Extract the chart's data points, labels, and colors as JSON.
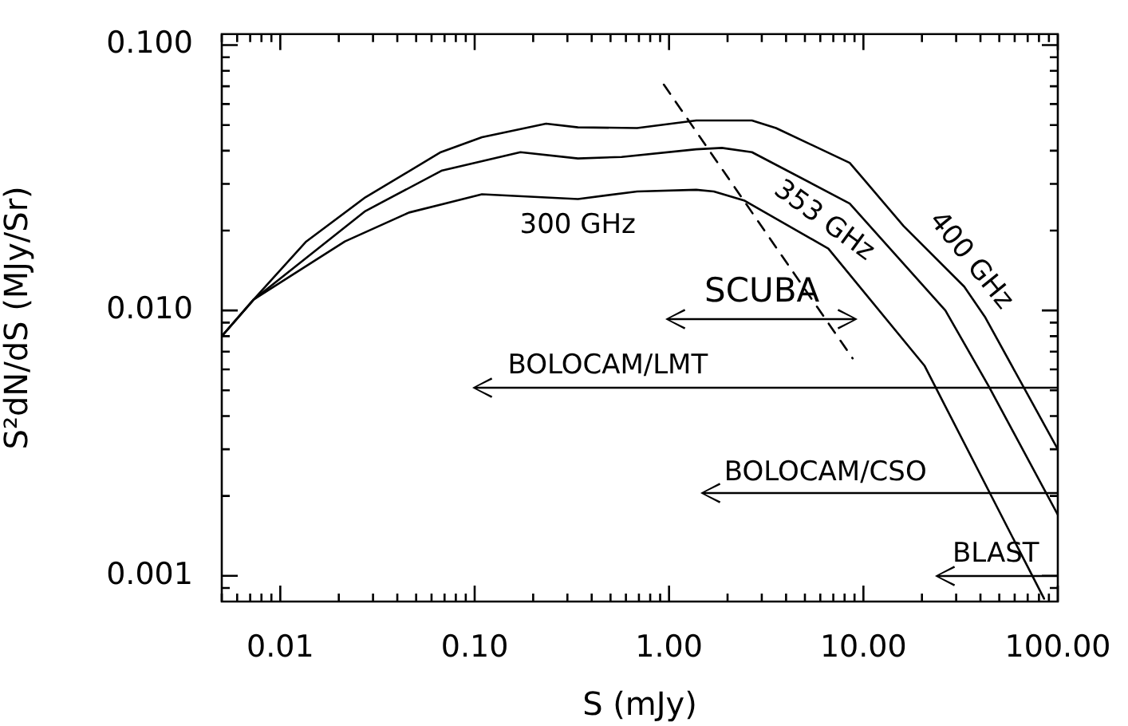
{
  "chart_data": {
    "type": "line",
    "xlabel": "S (mJy)",
    "ylabel": "S²dN/dS (MJy/Sr)",
    "log": "xy",
    "legend": false,
    "marker": "none",
    "line_style": "solid",
    "xlim": [
      0.005,
      100
    ],
    "ylim": [
      0.0008,
      0.11
    ],
    "xticks": [
      {
        "value": 0.005,
        "label": null
      },
      {
        "value": 0.006,
        "label": null
      },
      {
        "value": 0.007,
        "label": null
      },
      {
        "value": 0.008,
        "label": null
      },
      {
        "value": 0.009,
        "label": null
      },
      {
        "value": 0.01,
        "label": "0.01"
      },
      {
        "value": 0.02,
        "label": null
      },
      {
        "value": 0.03,
        "label": null
      },
      {
        "value": 0.04,
        "label": null
      },
      {
        "value": 0.05,
        "label": null
      },
      {
        "value": 0.06,
        "label": null
      },
      {
        "value": 0.07,
        "label": null
      },
      {
        "value": 0.08,
        "label": null
      },
      {
        "value": 0.09,
        "label": null
      },
      {
        "value": 0.1,
        "label": "0.10"
      },
      {
        "value": 0.2,
        "label": null
      },
      {
        "value": 0.3,
        "label": null
      },
      {
        "value": 0.4,
        "label": null
      },
      {
        "value": 0.5,
        "label": null
      },
      {
        "value": 0.6,
        "label": null
      },
      {
        "value": 0.7,
        "label": null
      },
      {
        "value": 0.8,
        "label": null
      },
      {
        "value": 0.9,
        "label": null
      },
      {
        "value": 1,
        "label": "1.00"
      },
      {
        "value": 2,
        "label": null
      },
      {
        "value": 3,
        "label": null
      },
      {
        "value": 4,
        "label": null
      },
      {
        "value": 5,
        "label": null
      },
      {
        "value": 6,
        "label": null
      },
      {
        "value": 7,
        "label": null
      },
      {
        "value": 8,
        "label": null
      },
      {
        "value": 9,
        "label": null
      },
      {
        "value": 10,
        "label": "10.00"
      },
      {
        "value": 20,
        "label": null
      },
      {
        "value": 30,
        "label": null
      },
      {
        "value": 40,
        "label": null
      },
      {
        "value": 50,
        "label": null
      },
      {
        "value": 60,
        "label": null
      },
      {
        "value": 70,
        "label": null
      },
      {
        "value": 80,
        "label": null
      },
      {
        "value": 90,
        "label": null
      },
      {
        "value": 100,
        "label": "100.00"
      }
    ],
    "yticks": [
      {
        "value": 0.0009,
        "label": null
      },
      {
        "value": 0.001,
        "label": "0.001"
      },
      {
        "value": 0.002,
        "label": null
      },
      {
        "value": 0.003,
        "label": null
      },
      {
        "value": 0.004,
        "label": null
      },
      {
        "value": 0.005,
        "label": null
      },
      {
        "value": 0.006,
        "label": null
      },
      {
        "value": 0.007,
        "label": null
      },
      {
        "value": 0.008,
        "label": null
      },
      {
        "value": 0.009,
        "label": null
      },
      {
        "value": 0.01,
        "label": "0.010"
      },
      {
        "value": 0.02,
        "label": null
      },
      {
        "value": 0.03,
        "label": null
      },
      {
        "value": 0.04,
        "label": null
      },
      {
        "value": 0.05,
        "label": null
      },
      {
        "value": 0.06,
        "label": null
      },
      {
        "value": 0.07,
        "label": null
      },
      {
        "value": 0.08,
        "label": null
      },
      {
        "value": 0.09,
        "label": null
      },
      {
        "value": 0.1,
        "label": "0.100"
      }
    ],
    "series": [
      {
        "name": "300 GHz",
        "color": "#000000",
        "x": [
          0.005,
          0.0073,
          0.0215,
          0.046,
          0.109,
          0.34,
          0.685,
          1.38,
          1.7,
          2.43,
          6.6,
          20.6,
          85
        ],
        "values": [
          0.008,
          0.011,
          0.0182,
          0.0234,
          0.0274,
          0.0263,
          0.0281,
          0.0285,
          0.0281,
          0.026,
          0.0171,
          0.0062,
          0.00082
        ]
      },
      {
        "name": "353 GHz",
        "color": "#000000",
        "x": [
          0.005,
          0.0073,
          0.0274,
          0.068,
          0.172,
          0.34,
          0.57,
          1.38,
          1.87,
          2.67,
          8.5,
          26.4,
          44,
          100
        ],
        "values": [
          0.008,
          0.011,
          0.0237,
          0.0337,
          0.0395,
          0.0374,
          0.0379,
          0.0405,
          0.041,
          0.0395,
          0.0253,
          0.01,
          0.0052,
          0.0017
        ]
      },
      {
        "name": "400 GHz",
        "color": "#000000",
        "x": [
          0.005,
          0.0073,
          0.0136,
          0.0274,
          0.067,
          0.109,
          0.233,
          0.34,
          0.685,
          1.38,
          2.67,
          3.55,
          8.5,
          10.2,
          16.1,
          33,
          42.4,
          100
        ],
        "values": [
          0.008,
          0.011,
          0.0182,
          0.0267,
          0.0395,
          0.045,
          0.0506,
          0.049,
          0.0487,
          0.052,
          0.052,
          0.0487,
          0.036,
          0.0308,
          0.0208,
          0.0123,
          0.0094,
          0.003
        ]
      },
      {
        "color": "#000000",
        "line_style": "dashed",
        "x": [
          0.94,
          8.8
        ],
        "values": [
          0.071,
          0.0066
        ]
      }
    ],
    "annotations": [
      "SCUBA",
      "BOLOCAM/LMT",
      "BOLOCAM/CSO",
      "BLAST"
    ]
  }
}
